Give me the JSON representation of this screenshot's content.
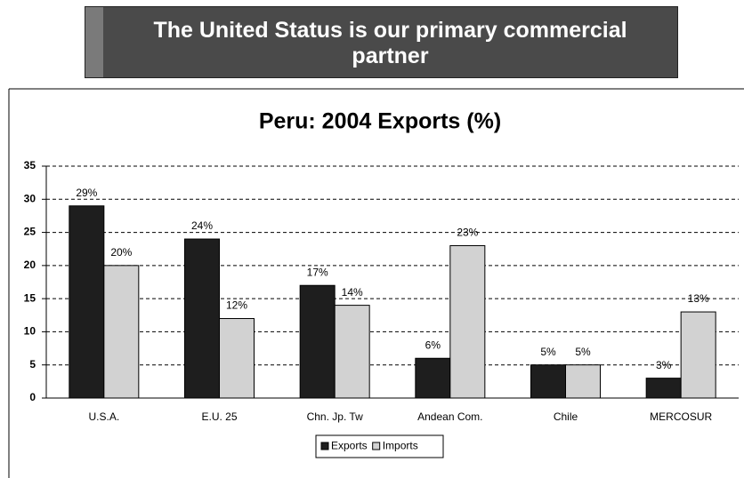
{
  "header": {
    "title": "The United Status is our primary commercial partner"
  },
  "chart_data": {
    "type": "bar",
    "title": "Peru: 2004 Exports (%)",
    "categories": [
      "U.S.A.",
      "E.U. 25",
      "Chn. Jp. Tw",
      "Andean Com.",
      "Chile",
      "MERCOSUR"
    ],
    "series": [
      {
        "name": "Exports",
        "color": "#1e1e1e",
        "values": [
          29,
          24,
          17,
          6,
          5,
          3
        ],
        "value_labels": [
          "29%",
          "24%",
          "17%",
          "6%",
          "5%",
          "3%"
        ]
      },
      {
        "name": "Imports",
        "color": "#d2d2d2",
        "values": [
          20,
          12,
          14,
          23,
          5,
          13
        ],
        "value_labels": [
          "20%",
          "12%",
          "14%",
          "23%",
          "5%",
          "13%"
        ]
      }
    ],
    "ylim": [
      0,
      35
    ],
    "yticks": [
      0,
      5,
      10,
      15,
      20,
      25,
      30,
      35
    ],
    "grid": true,
    "legend": "bottom"
  }
}
